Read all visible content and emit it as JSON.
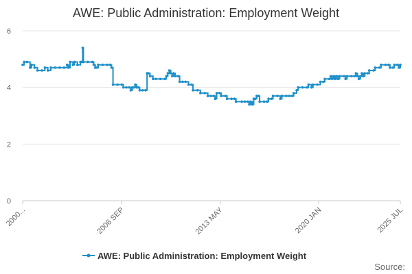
{
  "chart_data": {
    "type": "line",
    "title": "AWE: Public Administration: Employment Weight",
    "xlabel": "",
    "ylabel": "",
    "ylim": [
      0,
      6
    ],
    "yticks": [
      0,
      2,
      4,
      6
    ],
    "xticks": [
      {
        "label": "2000...",
        "value": 2000.0
      },
      {
        "label": "2006 SEP",
        "value": 2006.667
      },
      {
        "label": "2013 MAY",
        "value": 2013.333
      },
      {
        "label": "2020 JAN",
        "value": 2020.0
      },
      {
        "label": "2025 JUL",
        "value": 2025.5
      }
    ],
    "xlim": [
      2000.0,
      2025.5
    ],
    "grid": true,
    "legend_position": "bottom",
    "series": [
      {
        "name": "AWE: Public Administration: Employment Weight",
        "color": "#1d8fc9",
        "points": [
          [
            2000.0,
            4.8
          ],
          [
            2000.1,
            4.9
          ],
          [
            2000.3,
            4.9
          ],
          [
            2000.5,
            4.7
          ],
          [
            2000.6,
            4.8
          ],
          [
            2000.8,
            4.7
          ],
          [
            2001.0,
            4.6
          ],
          [
            2001.3,
            4.6
          ],
          [
            2001.5,
            4.7
          ],
          [
            2001.7,
            4.6
          ],
          [
            2001.9,
            4.7
          ],
          [
            2002.2,
            4.7
          ],
          [
            2002.5,
            4.7
          ],
          [
            2002.8,
            4.7
          ],
          [
            2003.0,
            4.8
          ],
          [
            2003.1,
            4.7
          ],
          [
            2003.2,
            4.9
          ],
          [
            2003.4,
            4.8
          ],
          [
            2003.5,
            4.9
          ],
          [
            2003.7,
            4.8
          ],
          [
            2003.9,
            4.9
          ],
          [
            2004.0,
            4.9
          ],
          [
            2004.05,
            5.4
          ],
          [
            2004.1,
            4.9
          ],
          [
            2004.4,
            4.9
          ],
          [
            2004.7,
            4.9
          ],
          [
            2004.8,
            4.8
          ],
          [
            2004.9,
            4.7
          ],
          [
            2005.0,
            4.7
          ],
          [
            2005.1,
            4.8
          ],
          [
            2005.4,
            4.8
          ],
          [
            2005.7,
            4.8
          ],
          [
            2005.9,
            4.8
          ],
          [
            2006.0,
            4.7
          ],
          [
            2006.1,
            4.1
          ],
          [
            2006.4,
            4.1
          ],
          [
            2006.7,
            4.1
          ],
          [
            2006.8,
            4.0
          ],
          [
            2007.0,
            4.0
          ],
          [
            2007.2,
            4.0
          ],
          [
            2007.3,
            3.9
          ],
          [
            2007.4,
            4.0
          ],
          [
            2007.5,
            4.0
          ],
          [
            2007.6,
            4.1
          ],
          [
            2007.7,
            4.0
          ],
          [
            2007.8,
            4.0
          ],
          [
            2007.9,
            3.9
          ],
          [
            2008.1,
            3.9
          ],
          [
            2008.3,
            3.9
          ],
          [
            2008.4,
            4.5
          ],
          [
            2008.5,
            4.5
          ],
          [
            2008.6,
            4.4
          ],
          [
            2008.8,
            4.3
          ],
          [
            2009.0,
            4.3
          ],
          [
            2009.3,
            4.3
          ],
          [
            2009.6,
            4.3
          ],
          [
            2009.7,
            4.4
          ],
          [
            2009.8,
            4.5
          ],
          [
            2009.9,
            4.6
          ],
          [
            2010.0,
            4.5
          ],
          [
            2010.1,
            4.4
          ],
          [
            2010.2,
            4.5
          ],
          [
            2010.3,
            4.4
          ],
          [
            2010.5,
            4.4
          ],
          [
            2010.6,
            4.2
          ],
          [
            2010.8,
            4.2
          ],
          [
            2011.0,
            4.2
          ],
          [
            2011.2,
            4.1
          ],
          [
            2011.4,
            4.1
          ],
          [
            2011.5,
            3.9
          ],
          [
            2011.8,
            3.9
          ],
          [
            2012.0,
            3.8
          ],
          [
            2012.3,
            3.8
          ],
          [
            2012.5,
            3.7
          ],
          [
            2012.7,
            3.7
          ],
          [
            2012.9,
            3.7
          ],
          [
            2013.0,
            3.6
          ],
          [
            2013.1,
            3.8
          ],
          [
            2013.3,
            3.8
          ],
          [
            2013.4,
            3.7
          ],
          [
            2013.7,
            3.7
          ],
          [
            2013.8,
            3.6
          ],
          [
            2014.1,
            3.6
          ],
          [
            2014.3,
            3.6
          ],
          [
            2014.4,
            3.5
          ],
          [
            2014.8,
            3.5
          ],
          [
            2015.0,
            3.5
          ],
          [
            2015.2,
            3.5
          ],
          [
            2015.3,
            3.4
          ],
          [
            2015.4,
            3.5
          ],
          [
            2015.5,
            3.4
          ],
          [
            2015.6,
            3.6
          ],
          [
            2015.7,
            3.6
          ],
          [
            2015.8,
            3.7
          ],
          [
            2015.9,
            3.7
          ],
          [
            2016.0,
            3.5
          ],
          [
            2016.3,
            3.5
          ],
          [
            2016.5,
            3.5
          ],
          [
            2016.6,
            3.6
          ],
          [
            2016.8,
            3.6
          ],
          [
            2016.9,
            3.7
          ],
          [
            2017.2,
            3.7
          ],
          [
            2017.4,
            3.6
          ],
          [
            2017.5,
            3.7
          ],
          [
            2017.8,
            3.7
          ],
          [
            2018.0,
            3.7
          ],
          [
            2018.2,
            3.7
          ],
          [
            2018.3,
            3.8
          ],
          [
            2018.5,
            3.9
          ],
          [
            2018.6,
            4.0
          ],
          [
            2018.9,
            4.0
          ],
          [
            2019.2,
            4.0
          ],
          [
            2019.3,
            4.1
          ],
          [
            2019.5,
            4.0
          ],
          [
            2019.6,
            4.1
          ],
          [
            2019.9,
            4.1
          ],
          [
            2020.1,
            4.2
          ],
          [
            2020.3,
            4.2
          ],
          [
            2020.4,
            4.3
          ],
          [
            2020.7,
            4.3
          ],
          [
            2020.8,
            4.4
          ],
          [
            2020.9,
            4.3
          ],
          [
            2021.0,
            4.4
          ],
          [
            2021.1,
            4.3
          ],
          [
            2021.2,
            4.4
          ],
          [
            2021.3,
            4.3
          ],
          [
            2021.4,
            4.4
          ],
          [
            2021.7,
            4.4
          ],
          [
            2021.8,
            4.3
          ],
          [
            2021.9,
            4.4
          ],
          [
            2022.2,
            4.4
          ],
          [
            2022.4,
            4.4
          ],
          [
            2022.5,
            4.5
          ],
          [
            2022.6,
            4.4
          ],
          [
            2022.7,
            4.3
          ],
          [
            2022.8,
            4.4
          ],
          [
            2022.9,
            4.5
          ],
          [
            2023.0,
            4.4
          ],
          [
            2023.1,
            4.5
          ],
          [
            2023.3,
            4.5
          ],
          [
            2023.4,
            4.6
          ],
          [
            2023.7,
            4.6
          ],
          [
            2023.8,
            4.7
          ],
          [
            2024.1,
            4.7
          ],
          [
            2024.2,
            4.8
          ],
          [
            2024.5,
            4.8
          ],
          [
            2024.7,
            4.8
          ],
          [
            2024.8,
            4.7
          ],
          [
            2025.0,
            4.7
          ],
          [
            2025.1,
            4.8
          ],
          [
            2025.3,
            4.8
          ],
          [
            2025.4,
            4.7
          ],
          [
            2025.5,
            4.8
          ]
        ]
      }
    ]
  },
  "legend": {
    "label": "AWE: Public Administration: Employment Weight"
  },
  "source": {
    "label": "Source:"
  }
}
